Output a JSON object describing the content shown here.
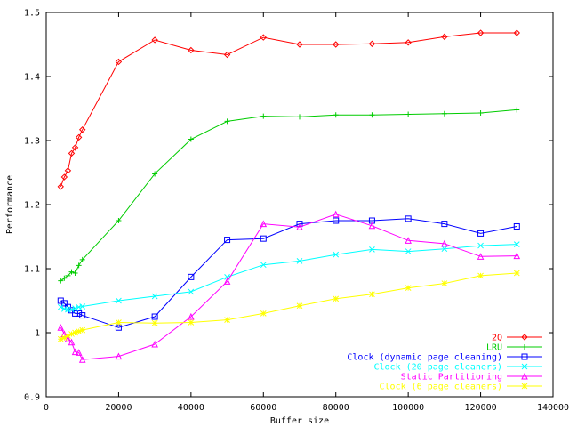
{
  "chart_data": {
    "type": "line",
    "title": "",
    "xlabel": "Buffer size",
    "ylabel": "Performance",
    "xlim": [
      0,
      140000
    ],
    "ylim": [
      0.9,
      1.5
    ],
    "xticks": [
      "0",
      "20000",
      "40000",
      "60000",
      "80000",
      "100000",
      "120000",
      "140000"
    ],
    "yticks": [
      "0.9",
      "1",
      "1.1",
      "1.2",
      "1.3",
      "1.4",
      "1.5"
    ],
    "grid": false,
    "legend_position": "bottom-right",
    "series": [
      {
        "name": "2Q",
        "color": "#ff0000",
        "marker": "diamond",
        "x": [
          4000,
          5000,
          6000,
          7000,
          8000,
          9000,
          10000,
          20000,
          30000,
          40000,
          50000,
          60000,
          70000,
          80000,
          90000,
          100000,
          110000,
          120000,
          130000
        ],
        "y": [
          1.228,
          1.243,
          1.253,
          1.28,
          1.289,
          1.305,
          1.317,
          1.423,
          1.457,
          1.441,
          1.434,
          1.461,
          1.45,
          1.45,
          1.451,
          1.453,
          1.462,
          1.468,
          1.468
        ]
      },
      {
        "name": "LRU",
        "color": "#00cc00",
        "marker": "plus",
        "x": [
          4000,
          5000,
          6000,
          7000,
          8000,
          9000,
          10000,
          20000,
          30000,
          40000,
          50000,
          60000,
          70000,
          80000,
          90000,
          100000,
          110000,
          120000,
          130000
        ],
        "y": [
          1.081,
          1.085,
          1.089,
          1.095,
          1.093,
          1.105,
          1.114,
          1.175,
          1.248,
          1.302,
          1.33,
          1.338,
          1.337,
          1.34,
          1.34,
          1.341,
          1.342,
          1.343,
          1.348
        ]
      },
      {
        "name": "Clock (dynamic page cleaning)",
        "color": "#0000ff",
        "marker": "square",
        "x": [
          4000,
          5000,
          6000,
          7000,
          8000,
          9000,
          10000,
          20000,
          30000,
          40000,
          50000,
          60000,
          70000,
          80000,
          90000,
          100000,
          110000,
          120000,
          130000
        ],
        "y": [
          1.05,
          1.046,
          1.04,
          1.035,
          1.03,
          1.03,
          1.027,
          1.008,
          1.025,
          1.087,
          1.145,
          1.147,
          1.17,
          1.175,
          1.175,
          1.178,
          1.17,
          1.155,
          1.166
        ]
      },
      {
        "name": "Clock (20 page cleaners)",
        "color": "#00ffff",
        "marker": "cross",
        "x": [
          4000,
          5000,
          6000,
          7000,
          8000,
          9000,
          10000,
          20000,
          30000,
          40000,
          50000,
          60000,
          70000,
          80000,
          90000,
          100000,
          110000,
          120000,
          130000
        ],
        "y": [
          1.04,
          1.037,
          1.036,
          1.036,
          1.038,
          1.04,
          1.041,
          1.05,
          1.057,
          1.064,
          1.087,
          1.106,
          1.112,
          1.122,
          1.13,
          1.127,
          1.131,
          1.136,
          1.138
        ]
      },
      {
        "name": "Static Partitioning",
        "color": "#ff00ff",
        "marker": "triangle",
        "x": [
          4000,
          5000,
          6000,
          7000,
          8000,
          9000,
          10000,
          20000,
          30000,
          40000,
          50000,
          60000,
          70000,
          80000,
          90000,
          100000,
          110000,
          120000,
          130000
        ],
        "y": [
          1.008,
          0.998,
          0.99,
          0.985,
          0.97,
          0.969,
          0.958,
          0.963,
          0.982,
          1.025,
          1.08,
          1.17,
          1.165,
          1.185,
          1.167,
          1.144,
          1.139,
          1.119,
          1.12
        ]
      },
      {
        "name": "Clock (6 page cleaners)",
        "color": "#ffff00",
        "marker": "star",
        "x": [
          4000,
          5000,
          6000,
          7000,
          8000,
          9000,
          10000,
          20000,
          30000,
          40000,
          50000,
          60000,
          70000,
          80000,
          90000,
          100000,
          110000,
          120000,
          130000
        ],
        "y": [
          0.99,
          0.992,
          0.995,
          0.998,
          1.0,
          1.002,
          1.004,
          1.016,
          1.015,
          1.016,
          1.02,
          1.03,
          1.042,
          1.053,
          1.06,
          1.07,
          1.077,
          1.089,
          1.093
        ]
      }
    ]
  }
}
